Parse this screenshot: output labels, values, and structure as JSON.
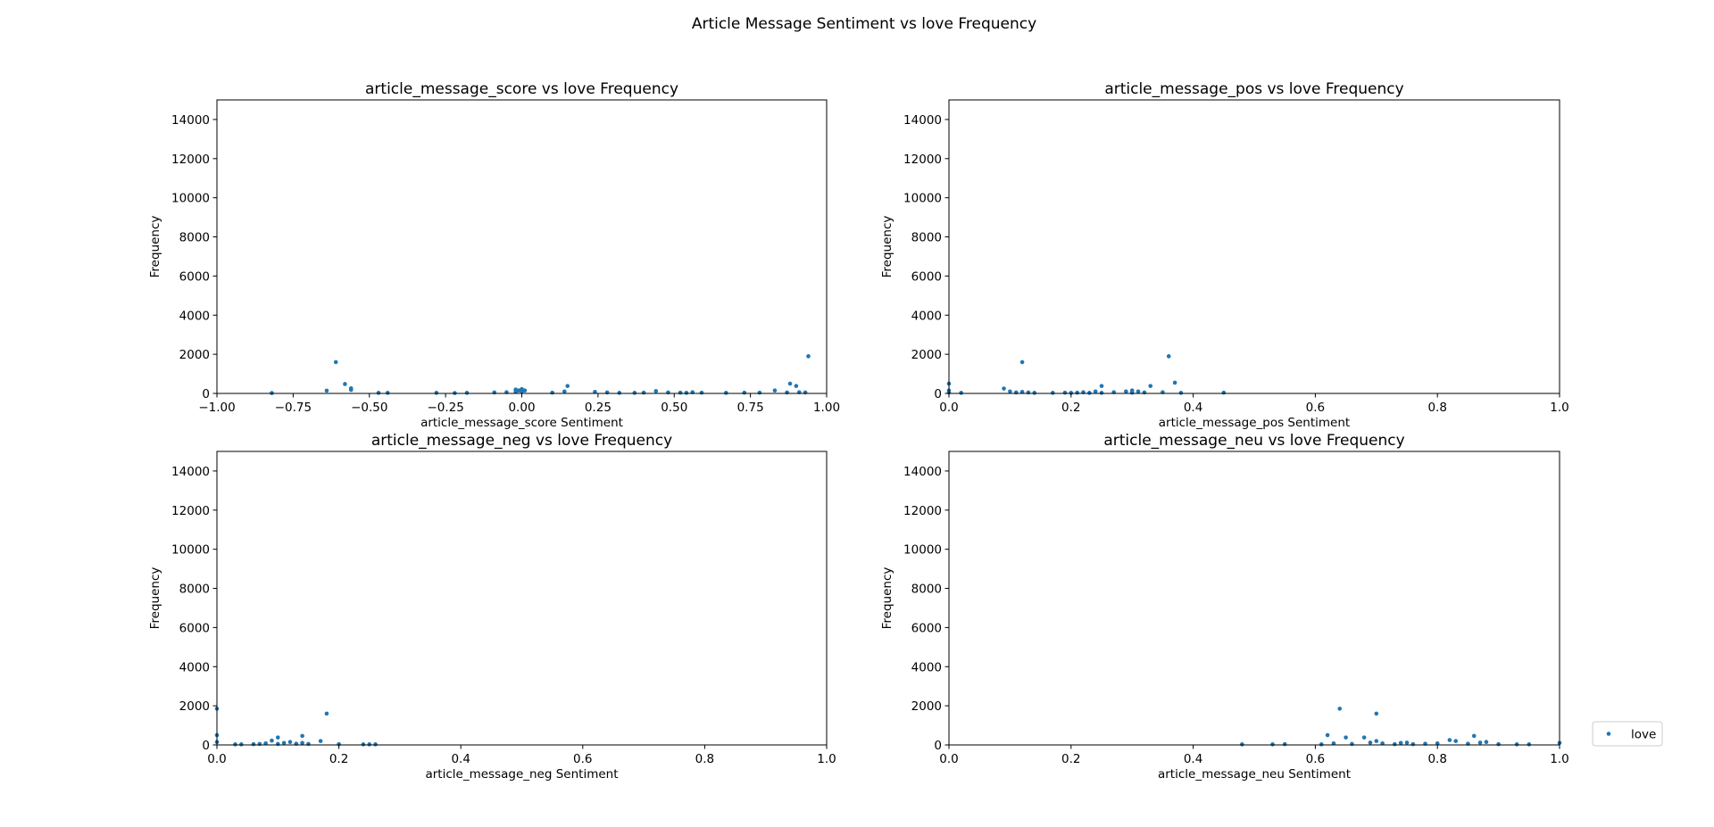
{
  "figure": {
    "title": "Article Message Sentiment vs love Frequency",
    "colors": {
      "marker": "#1f77b4",
      "axes": "#000000",
      "background": "#ffffff"
    }
  },
  "legend": {
    "placement": "right",
    "entries": [
      {
        "label": "love",
        "marker": "dot"
      }
    ]
  },
  "chart_data": [
    {
      "type": "scatter",
      "title": "article_message_score vs love Frequency",
      "xlabel": "article_message_score Sentiment",
      "ylabel": "Frequency",
      "xlim": [
        -1.0,
        1.0
      ],
      "ylim": [
        0,
        15000
      ],
      "xticks": [
        "−1.00",
        "−0.75",
        "−0.50",
        "−0.25",
        "0.00",
        "0.25",
        "0.50",
        "0.75",
        "1.00"
      ],
      "yticks": [
        "0",
        "2000",
        "4000",
        "6000",
        "8000",
        "10000",
        "12000",
        "14000"
      ],
      "series": [
        {
          "name": "love",
          "x": [
            -0.82,
            -0.64,
            -0.61,
            -0.58,
            -0.56,
            -0.56,
            -0.47,
            -0.44,
            -0.28,
            -0.22,
            -0.18,
            -0.09,
            -0.05,
            -0.02,
            -0.02,
            -0.01,
            0.0,
            0.0,
            0.01,
            0.1,
            0.14,
            0.15,
            0.24,
            0.28,
            0.32,
            0.37,
            0.4,
            0.44,
            0.48,
            0.52,
            0.54,
            0.56,
            0.59,
            0.67,
            0.73,
            0.78,
            0.83,
            0.87,
            0.88,
            0.9,
            0.91,
            0.93,
            0.94
          ],
          "y": [
            20,
            140,
            1600,
            480,
            260,
            180,
            30,
            30,
            30,
            20,
            30,
            50,
            60,
            80,
            200,
            150,
            220,
            100,
            150,
            40,
            100,
            380,
            80,
            50,
            30,
            30,
            40,
            120,
            50,
            40,
            30,
            60,
            40,
            30,
            40,
            40,
            150,
            50,
            500,
            380,
            60,
            50,
            1900
          ]
        }
      ],
      "grid": false
    },
    {
      "type": "scatter",
      "title": "article_message_pos vs love Frequency",
      "xlabel": "article_message_pos Sentiment",
      "ylabel": "Frequency",
      "xlim": [
        0.0,
        1.0
      ],
      "ylim": [
        0,
        15000
      ],
      "xticks": [
        "0.0",
        "0.2",
        "0.4",
        "0.6",
        "0.8",
        "1.0"
      ],
      "yticks": [
        "0",
        "2000",
        "4000",
        "6000",
        "8000",
        "10000",
        "12000",
        "14000"
      ],
      "series": [
        {
          "name": "love",
          "x": [
            0.0,
            0.0,
            0.0,
            0.02,
            0.09,
            0.1,
            0.11,
            0.12,
            0.12,
            0.13,
            0.14,
            0.17,
            0.19,
            0.2,
            0.21,
            0.22,
            0.23,
            0.24,
            0.25,
            0.25,
            0.27,
            0.29,
            0.3,
            0.3,
            0.31,
            0.32,
            0.33,
            0.35,
            0.36,
            0.37,
            0.38,
            0.45
          ],
          "y": [
            50,
            500,
            150,
            30,
            250,
            100,
            50,
            1600,
            80,
            50,
            30,
            30,
            40,
            30,
            40,
            60,
            30,
            100,
            380,
            30,
            60,
            100,
            150,
            40,
            100,
            50,
            380,
            60,
            1900,
            550,
            30,
            40
          ]
        }
      ],
      "grid": false
    },
    {
      "type": "scatter",
      "title": "article_message_neg vs love Frequency",
      "xlabel": "article_message_neg Sentiment",
      "ylabel": "Frequency",
      "xlim": [
        0.0,
        1.0
      ],
      "ylim": [
        0,
        15000
      ],
      "xticks": [
        "0.0",
        "0.2",
        "0.4",
        "0.6",
        "0.8",
        "1.0"
      ],
      "yticks": [
        "0",
        "2000",
        "4000",
        "6000",
        "8000",
        "10000",
        "12000",
        "14000"
      ],
      "series": [
        {
          "name": "love",
          "x": [
            0.0,
            0.0,
            0.0,
            0.03,
            0.04,
            0.06,
            0.07,
            0.08,
            0.09,
            0.1,
            0.1,
            0.11,
            0.12,
            0.13,
            0.14,
            0.14,
            0.15,
            0.17,
            0.18,
            0.2,
            0.24,
            0.25,
            0.26
          ],
          "y": [
            1850,
            500,
            150,
            30,
            30,
            40,
            50,
            80,
            220,
            380,
            50,
            100,
            150,
            60,
            460,
            100,
            50,
            200,
            1600,
            40,
            30,
            30,
            30
          ]
        }
      ],
      "grid": false
    },
    {
      "type": "scatter",
      "title": "article_message_neu vs love Frequency",
      "xlabel": "article_message_neu Sentiment",
      "ylabel": "Frequency",
      "xlim": [
        0.0,
        1.0
      ],
      "ylim": [
        0,
        15000
      ],
      "xticks": [
        "0.0",
        "0.2",
        "0.4",
        "0.6",
        "0.8",
        "1.0"
      ],
      "yticks": [
        "0",
        "2000",
        "4000",
        "6000",
        "8000",
        "10000",
        "12000",
        "14000"
      ],
      "series": [
        {
          "name": "love",
          "x": [
            0.48,
            0.53,
            0.55,
            0.61,
            0.62,
            0.63,
            0.64,
            0.65,
            0.66,
            0.68,
            0.69,
            0.7,
            0.7,
            0.71,
            0.73,
            0.74,
            0.75,
            0.76,
            0.78,
            0.8,
            0.82,
            0.83,
            0.85,
            0.86,
            0.87,
            0.88,
            0.9,
            0.93,
            0.95,
            1.0
          ],
          "y": [
            30,
            30,
            40,
            30,
            500,
            80,
            1850,
            380,
            50,
            380,
            120,
            200,
            1600,
            80,
            40,
            100,
            120,
            40,
            60,
            80,
            250,
            200,
            60,
            460,
            120,
            150,
            40,
            30,
            30,
            100
          ]
        }
      ],
      "grid": false
    }
  ]
}
